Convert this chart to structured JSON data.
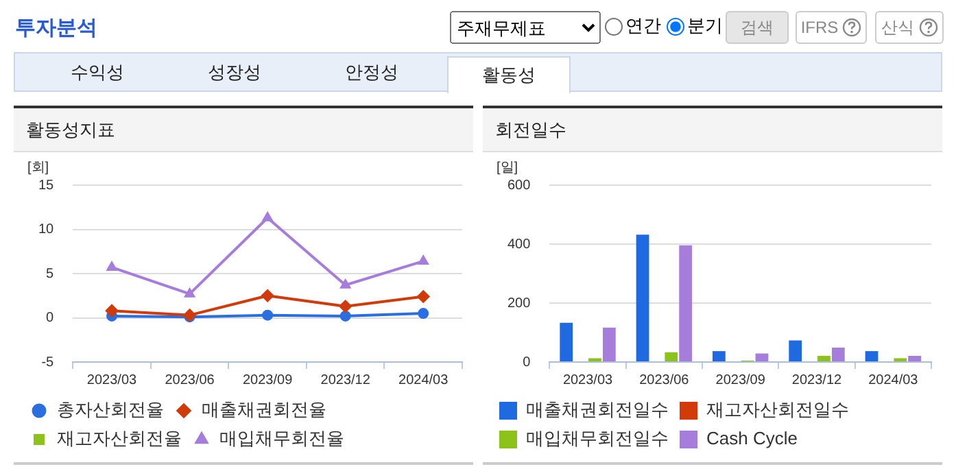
{
  "chart_data": [
    {
      "type": "other",
      "title": "투자분석",
      "annotations": [
        "주재무제표",
        "연간",
        "분기",
        "검색",
        "IFRS",
        "산식",
        "수익성",
        "성장성",
        "안정성",
        "활동성"
      ]
    },
    {
      "type": "line",
      "title": "활동성지표",
      "ylabel": "[회]",
      "categories": [
        "2023/03",
        "2023/06",
        "2023/09",
        "2023/12",
        "2024/03"
      ],
      "series": [
        {
          "name": "총자산회전율",
          "color": "#2a6ee0",
          "marker": "circle",
          "values": [
            0.2,
            0.1,
            0.3,
            0.2,
            0.5
          ]
        },
        {
          "name": "매출채권회전율",
          "color": "#d13a0a",
          "marker": "diamond",
          "values": [
            0.8,
            0.3,
            2.5,
            1.3,
            2.4
          ]
        },
        {
          "name": "재고자산회전율",
          "color": "#8cc21a",
          "marker": "square",
          "values": [
            null,
            null,
            null,
            null,
            null
          ]
        },
        {
          "name": "매입채무회전율",
          "color": "#a77ddc",
          "marker": "triangle",
          "values": [
            5.7,
            2.7,
            11.3,
            3.7,
            6.4
          ]
        }
      ],
      "ylim": [
        -5,
        15
      ],
      "yticks": [
        -5,
        0,
        5,
        10,
        15
      ],
      "grid": "y",
      "legend": "bottom"
    },
    {
      "type": "bar",
      "title": "회전일수",
      "ylabel": "[일]",
      "categories": [
        "2023/03",
        "2023/06",
        "2023/09",
        "2023/12",
        "2024/03"
      ],
      "series": [
        {
          "name": "매출채권회전일수",
          "color": "#1f6ae0",
          "values": [
            133,
            432,
            37,
            73,
            37
          ]
        },
        {
          "name": "재고자산회전일수",
          "color": "#d33a0a",
          "values": [
            null,
            null,
            null,
            null,
            null
          ]
        },
        {
          "name": "매입채무회전일수",
          "color": "#8cc21a",
          "values": [
            13,
            33,
            5,
            21,
            13
          ]
        },
        {
          "name": "Cash Cycle",
          "color": "#a77ddc",
          "values": [
            117,
            396,
            29,
            49,
            21
          ]
        }
      ],
      "ylim": [
        0,
        600
      ],
      "yticks": [
        0,
        200,
        400,
        600
      ],
      "grid": "y",
      "legend": "bottom"
    }
  ]
}
